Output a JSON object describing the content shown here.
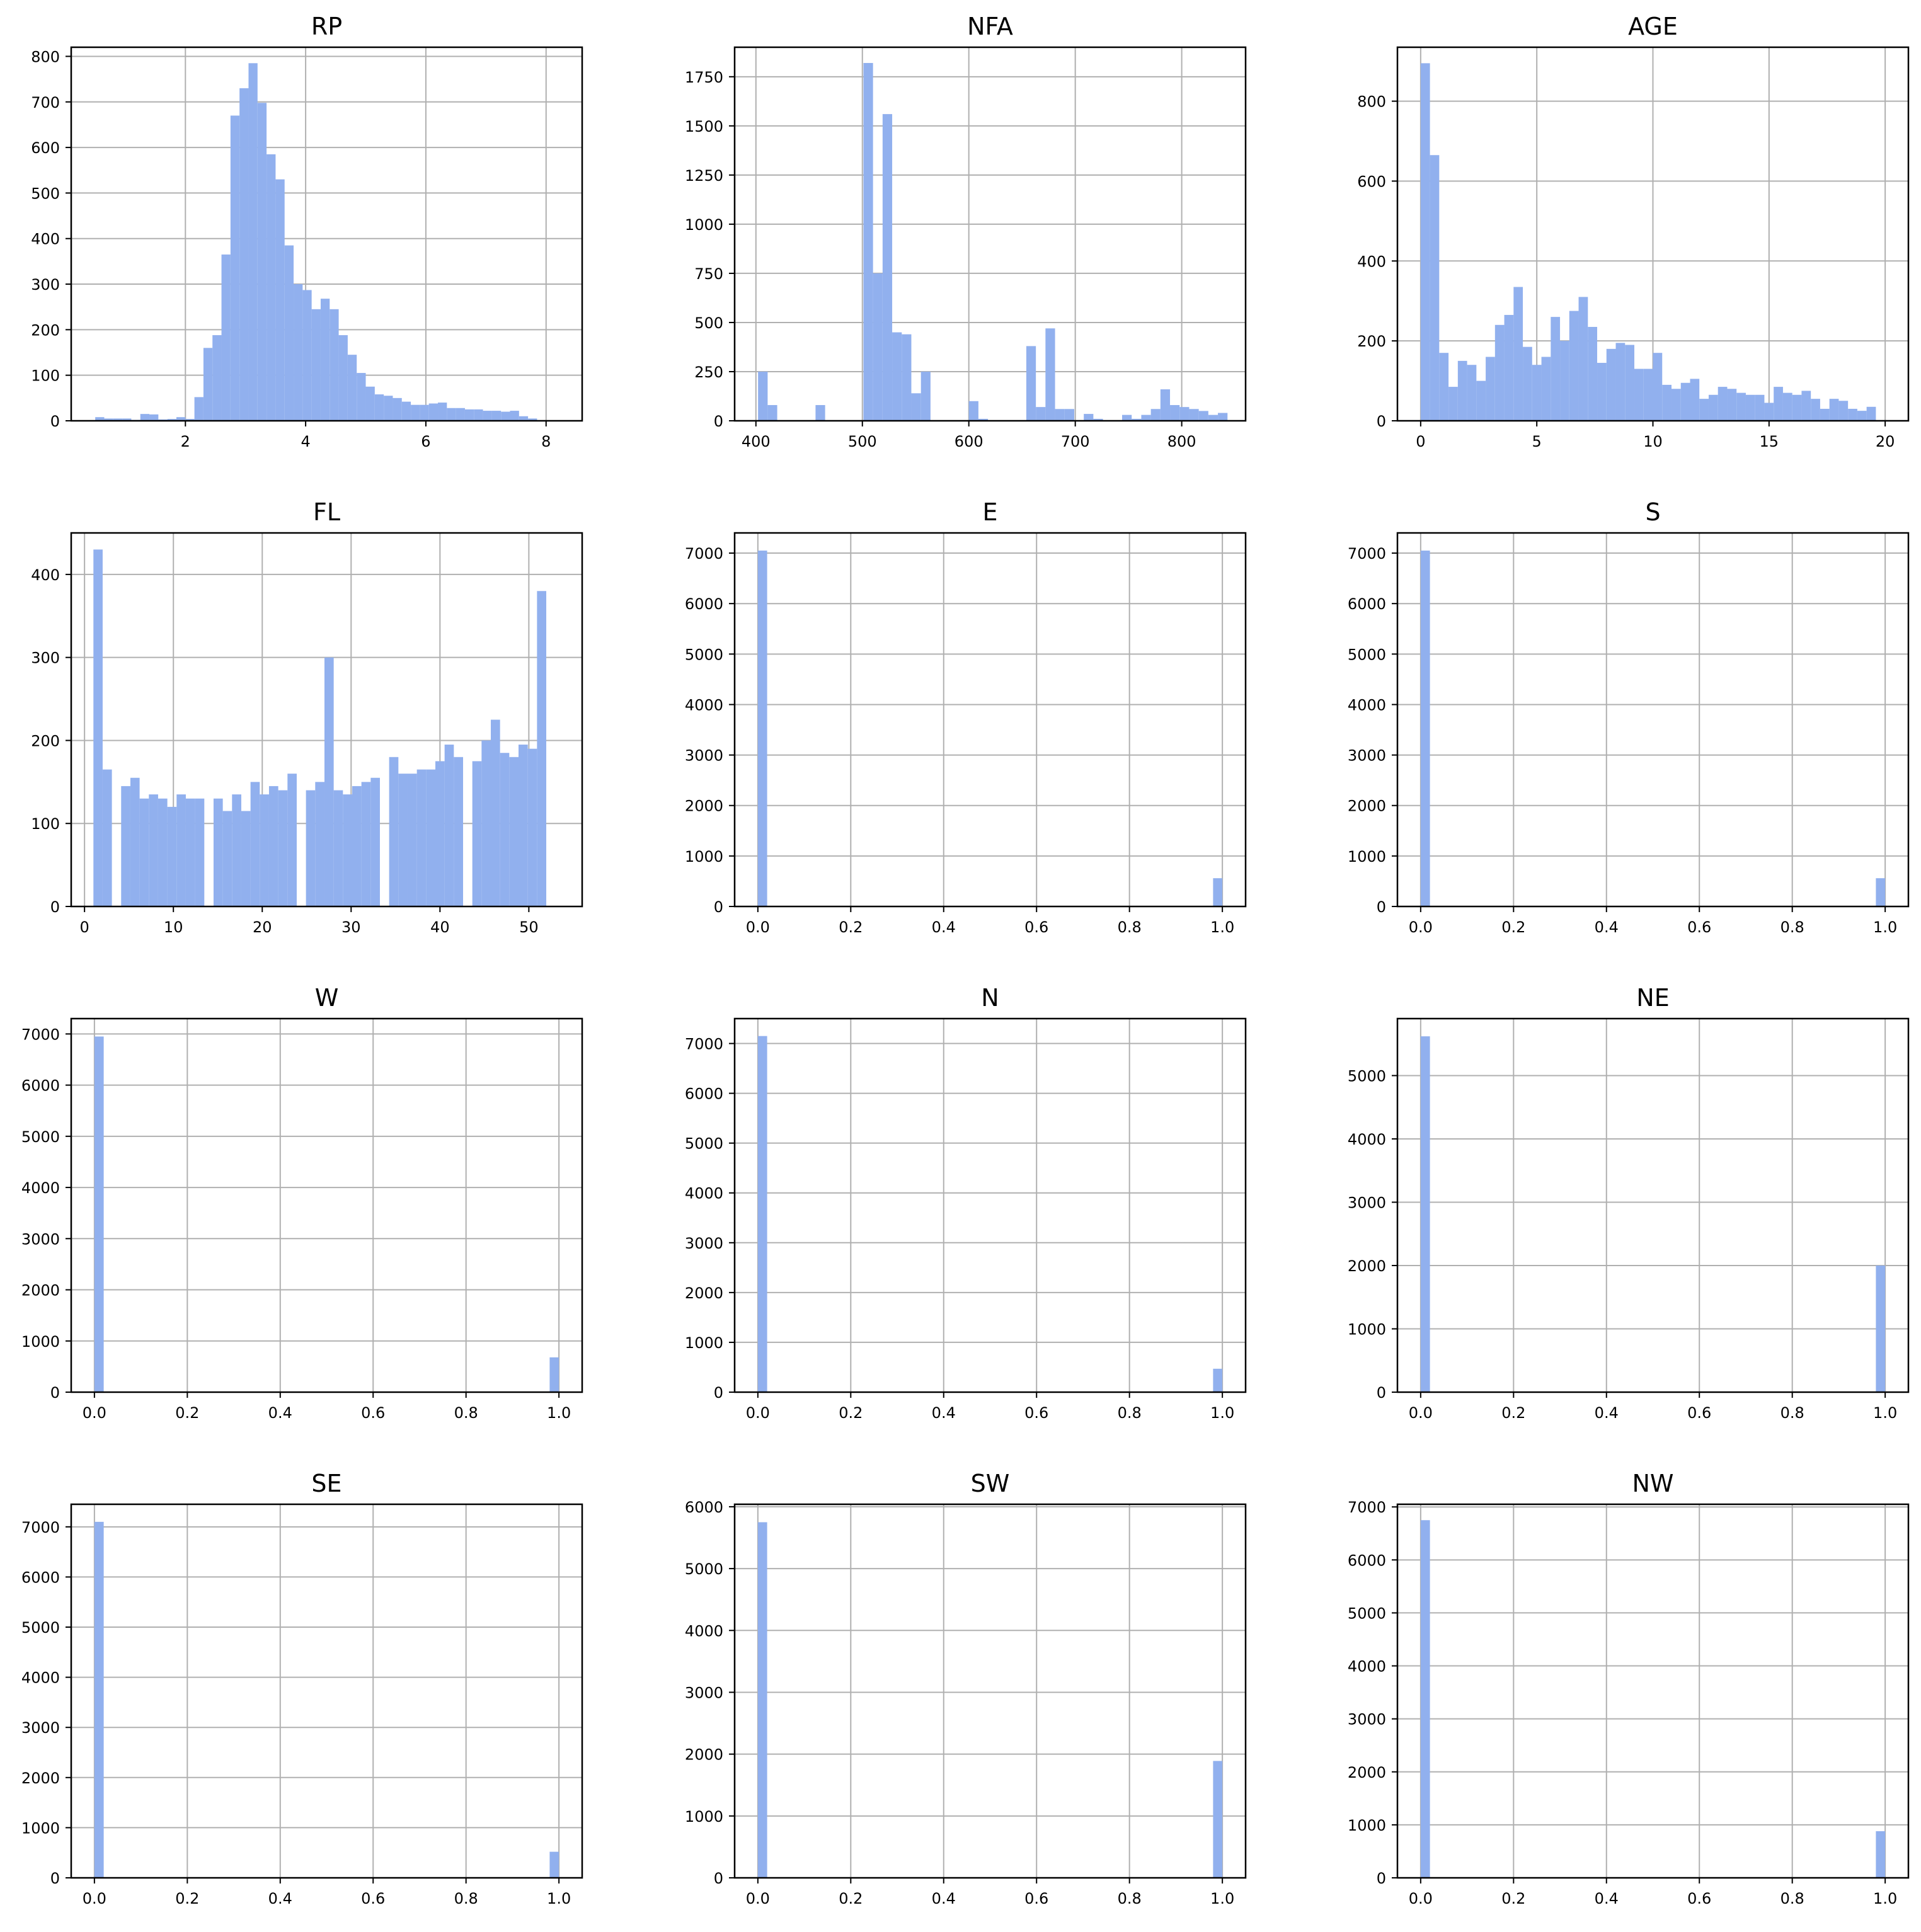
{
  "figure": {
    "type": "histogram-grid",
    "bar_color": "#91b0ee",
    "grid": true,
    "rows": 4,
    "cols": 3
  },
  "chart_data": [
    {
      "type": "bar",
      "title": "RP",
      "xlim": [
        0.1,
        8.6
      ],
      "ylim": [
        0,
        820
      ],
      "xticks": [
        2,
        4,
        6,
        8
      ],
      "xtick_labels": [
        "2",
        "4",
        "6",
        "8"
      ],
      "yticks": [
        0,
        100,
        200,
        300,
        400,
        500,
        600,
        700,
        800
      ],
      "ytick_labels": [
        "0",
        "100",
        "200",
        "300",
        "400",
        "500",
        "600",
        "700",
        "800"
      ],
      "bins": {
        "start": 0.5,
        "width": 0.15
      },
      "values": [
        8,
        5,
        5,
        5,
        2,
        15,
        14,
        3,
        4,
        8,
        4,
        52,
        160,
        188,
        365,
        670,
        730,
        785,
        698,
        585,
        530,
        385,
        300,
        287,
        245,
        268,
        245,
        188,
        145,
        105,
        75,
        58,
        55,
        50,
        42,
        35,
        35,
        38,
        40,
        28,
        28,
        25,
        25,
        22,
        22,
        20,
        22,
        10,
        5
      ]
    },
    {
      "type": "bar",
      "title": "NFA",
      "xlim": [
        380,
        860
      ],
      "ylim": [
        0,
        1900
      ],
      "xticks": [
        400,
        500,
        600,
        700,
        800
      ],
      "xtick_labels": [
        "400",
        "500",
        "600",
        "700",
        "800"
      ],
      "yticks": [
        0,
        250,
        500,
        750,
        1000,
        1250,
        1500,
        1750
      ],
      "ytick_labels": [
        "0",
        "250",
        "500",
        "750",
        "1000",
        "1250",
        "1500",
        "1750"
      ],
      "bins": {
        "start": 402,
        "width": 9
      },
      "values": [
        250,
        80,
        0,
        0,
        0,
        0,
        80,
        0,
        0,
        0,
        0,
        1820,
        750,
        1560,
        450,
        440,
        140,
        250,
        0,
        0,
        0,
        0,
        100,
        10,
        0,
        0,
        0,
        0,
        380,
        70,
        470,
        60,
        60,
        0,
        35,
        10,
        0,
        0,
        30,
        10,
        30,
        60,
        160,
        80,
        70,
        60,
        50,
        30,
        40,
        0
      ]
    },
    {
      "type": "bar",
      "title": "AGE",
      "xlim": [
        -1,
        21
      ],
      "ylim": [
        0,
        935
      ],
      "xticks": [
        0,
        5,
        10,
        15,
        20
      ],
      "xtick_labels": [
        "0",
        "5",
        "10",
        "15",
        "20"
      ],
      "yticks": [
        0,
        200,
        400,
        600,
        800
      ],
      "ytick_labels": [
        "0",
        "200",
        "400",
        "600",
        "800"
      ],
      "bins": {
        "start": 0,
        "width": 0.4
      },
      "values": [
        895,
        665,
        170,
        85,
        150,
        140,
        100,
        160,
        240,
        265,
        335,
        185,
        140,
        160,
        260,
        200,
        275,
        310,
        235,
        145,
        180,
        195,
        190,
        130,
        130,
        170,
        90,
        80,
        95,
        105,
        55,
        65,
        85,
        80,
        70,
        65,
        65,
        45,
        85,
        70,
        65,
        75,
        55,
        30,
        55,
        50,
        30,
        25,
        35
      ]
    },
    {
      "type": "bar",
      "title": "FL",
      "xlim": [
        -1.5,
        56
      ],
      "ylim": [
        0,
        450
      ],
      "xticks": [
        0,
        10,
        20,
        30,
        40,
        50
      ],
      "xtick_labels": [
        "0",
        "10",
        "20",
        "30",
        "40",
        "50"
      ],
      "bins": {
        "start": 1,
        "width": 1.04
      },
      "yticks": [
        0,
        100,
        200,
        300,
        400
      ],
      "ytick_labels": [
        "0",
        "100",
        "200",
        "300",
        "400"
      ],
      "values": [
        430,
        165,
        0,
        145,
        155,
        130,
        135,
        130,
        120,
        135,
        130,
        130,
        0,
        130,
        115,
        135,
        115,
        150,
        135,
        145,
        140,
        160,
        0,
        140,
        150,
        300,
        140,
        135,
        145,
        150,
        155,
        0,
        180,
        160,
        160,
        165,
        165,
        175,
        195,
        180,
        0,
        175,
        200,
        225,
        185,
        180,
        195,
        190,
        380,
        0
      ]
    },
    {
      "type": "bar",
      "title": "E",
      "xlim": [
        -0.05,
        1.05
      ],
      "ylim": [
        0,
        7400
      ],
      "xticks": [
        0,
        0.2,
        0.4,
        0.6,
        0.8,
        1.0
      ],
      "xtick_labels": [
        "0.0",
        "0.2",
        "0.4",
        "0.6",
        "0.8",
        "1.0"
      ],
      "yticks": [
        0,
        1000,
        2000,
        3000,
        4000,
        5000,
        6000,
        7000
      ],
      "ytick_labels": [
        "0",
        "1000",
        "2000",
        "3000",
        "4000",
        "5000",
        "6000",
        "7000"
      ],
      "bins": {
        "start": 0,
        "width": 0.02
      },
      "values": [
        7050,
        0,
        0,
        0,
        0,
        0,
        0,
        0,
        0,
        0,
        0,
        0,
        0,
        0,
        0,
        0,
        0,
        0,
        0,
        0,
        0,
        0,
        0,
        0,
        0,
        0,
        0,
        0,
        0,
        0,
        0,
        0,
        0,
        0,
        0,
        0,
        0,
        0,
        0,
        0,
        0,
        0,
        0,
        0,
        0,
        0,
        0,
        0,
        0,
        560
      ]
    },
    {
      "type": "bar",
      "title": "S",
      "xlim": [
        -0.05,
        1.05
      ],
      "ylim": [
        0,
        7400
      ],
      "xticks": [
        0,
        0.2,
        0.4,
        0.6,
        0.8,
        1.0
      ],
      "xtick_labels": [
        "0.0",
        "0.2",
        "0.4",
        "0.6",
        "0.8",
        "1.0"
      ],
      "yticks": [
        0,
        1000,
        2000,
        3000,
        4000,
        5000,
        6000,
        7000
      ],
      "ytick_labels": [
        "0",
        "1000",
        "2000",
        "3000",
        "4000",
        "5000",
        "6000",
        "7000"
      ],
      "bins": {
        "start": 0,
        "width": 0.02
      },
      "values": [
        7050,
        0,
        0,
        0,
        0,
        0,
        0,
        0,
        0,
        0,
        0,
        0,
        0,
        0,
        0,
        0,
        0,
        0,
        0,
        0,
        0,
        0,
        0,
        0,
        0,
        0,
        0,
        0,
        0,
        0,
        0,
        0,
        0,
        0,
        0,
        0,
        0,
        0,
        0,
        0,
        0,
        0,
        0,
        0,
        0,
        0,
        0,
        0,
        0,
        560
      ]
    },
    {
      "type": "bar",
      "title": "W",
      "xlim": [
        -0.05,
        1.05
      ],
      "ylim": [
        0,
        7300
      ],
      "xticks": [
        0,
        0.2,
        0.4,
        0.6,
        0.8,
        1.0
      ],
      "xtick_labels": [
        "0.0",
        "0.2",
        "0.4",
        "0.6",
        "0.8",
        "1.0"
      ],
      "yticks": [
        0,
        1000,
        2000,
        3000,
        4000,
        5000,
        6000,
        7000
      ],
      "ytick_labels": [
        "0",
        "1000",
        "2000",
        "3000",
        "4000",
        "5000",
        "6000",
        "7000"
      ],
      "bins": {
        "start": 0,
        "width": 0.02
      },
      "values": [
        6950,
        0,
        0,
        0,
        0,
        0,
        0,
        0,
        0,
        0,
        0,
        0,
        0,
        0,
        0,
        0,
        0,
        0,
        0,
        0,
        0,
        0,
        0,
        0,
        0,
        0,
        0,
        0,
        0,
        0,
        0,
        0,
        0,
        0,
        0,
        0,
        0,
        0,
        0,
        0,
        0,
        0,
        0,
        0,
        0,
        0,
        0,
        0,
        0,
        680
      ]
    },
    {
      "type": "bar",
      "title": "N",
      "xlim": [
        -0.05,
        1.05
      ],
      "ylim": [
        0,
        7500
      ],
      "xticks": [
        0,
        0.2,
        0.4,
        0.6,
        0.8,
        1.0
      ],
      "xtick_labels": [
        "0.0",
        "0.2",
        "0.4",
        "0.6",
        "0.8",
        "1.0"
      ],
      "yticks": [
        0,
        1000,
        2000,
        3000,
        4000,
        5000,
        6000,
        7000
      ],
      "ytick_labels": [
        "0",
        "1000",
        "2000",
        "3000",
        "4000",
        "5000",
        "6000",
        "7000"
      ],
      "bins": {
        "start": 0,
        "width": 0.02
      },
      "values": [
        7150,
        0,
        0,
        0,
        0,
        0,
        0,
        0,
        0,
        0,
        0,
        0,
        0,
        0,
        0,
        0,
        0,
        0,
        0,
        0,
        0,
        0,
        0,
        0,
        0,
        0,
        0,
        0,
        0,
        0,
        0,
        0,
        0,
        0,
        0,
        0,
        0,
        0,
        0,
        0,
        0,
        0,
        0,
        0,
        0,
        0,
        0,
        0,
        0,
        470
      ]
    },
    {
      "type": "bar",
      "title": "NE",
      "xlim": [
        -0.05,
        1.05
      ],
      "ylim": [
        0,
        5900
      ],
      "xticks": [
        0,
        0.2,
        0.4,
        0.6,
        0.8,
        1.0
      ],
      "xtick_labels": [
        "0.0",
        "0.2",
        "0.4",
        "0.6",
        "0.8",
        "1.0"
      ],
      "yticks": [
        0,
        1000,
        2000,
        3000,
        4000,
        5000
      ],
      "ytick_labels": [
        "0",
        "1000",
        "2000",
        "3000",
        "4000",
        "5000"
      ],
      "bins": {
        "start": 0,
        "width": 0.02
      },
      "values": [
        5620,
        0,
        0,
        0,
        0,
        0,
        0,
        0,
        0,
        0,
        0,
        0,
        0,
        0,
        0,
        0,
        0,
        0,
        0,
        0,
        0,
        0,
        0,
        0,
        0,
        0,
        0,
        0,
        0,
        0,
        0,
        0,
        0,
        0,
        0,
        0,
        0,
        0,
        0,
        0,
        0,
        0,
        0,
        0,
        0,
        0,
        0,
        0,
        0,
        2000
      ]
    },
    {
      "type": "bar",
      "title": "SE",
      "xlim": [
        -0.05,
        1.05
      ],
      "ylim": [
        0,
        7450
      ],
      "xticks": [
        0,
        0.2,
        0.4,
        0.6,
        0.8,
        1.0
      ],
      "xtick_labels": [
        "0.0",
        "0.2",
        "0.4",
        "0.6",
        "0.8",
        "1.0"
      ],
      "yticks": [
        0,
        1000,
        2000,
        3000,
        4000,
        5000,
        6000,
        7000
      ],
      "ytick_labels": [
        "0",
        "1000",
        "2000",
        "3000",
        "4000",
        "5000",
        "6000",
        "7000"
      ],
      "bins": {
        "start": 0,
        "width": 0.02
      },
      "values": [
        7100,
        0,
        0,
        0,
        0,
        0,
        0,
        0,
        0,
        0,
        0,
        0,
        0,
        0,
        0,
        0,
        0,
        0,
        0,
        0,
        0,
        0,
        0,
        0,
        0,
        0,
        0,
        0,
        0,
        0,
        0,
        0,
        0,
        0,
        0,
        0,
        0,
        0,
        0,
        0,
        0,
        0,
        0,
        0,
        0,
        0,
        0,
        0,
        0,
        520
      ]
    },
    {
      "type": "bar",
      "title": "SW",
      "xlim": [
        -0.05,
        1.05
      ],
      "ylim": [
        0,
        6040
      ],
      "xticks": [
        0,
        0.2,
        0.4,
        0.6,
        0.8,
        1.0
      ],
      "xtick_labels": [
        "0.0",
        "0.2",
        "0.4",
        "0.6",
        "0.8",
        "1.0"
      ],
      "yticks": [
        0,
        1000,
        2000,
        3000,
        4000,
        5000,
        6000
      ],
      "ytick_labels": [
        "0",
        "1000",
        "2000",
        "3000",
        "4000",
        "5000",
        "6000"
      ],
      "bins": {
        "start": 0,
        "width": 0.02
      },
      "values": [
        5750,
        0,
        0,
        0,
        0,
        0,
        0,
        0,
        0,
        0,
        0,
        0,
        0,
        0,
        0,
        0,
        0,
        0,
        0,
        0,
        0,
        0,
        0,
        0,
        0,
        0,
        0,
        0,
        0,
        0,
        0,
        0,
        0,
        0,
        0,
        0,
        0,
        0,
        0,
        0,
        0,
        0,
        0,
        0,
        0,
        0,
        0,
        0,
        0,
        1890
      ]
    },
    {
      "type": "bar",
      "title": "NW",
      "xlim": [
        -0.05,
        1.05
      ],
      "ylim": [
        0,
        7050
      ],
      "xticks": [
        0,
        0.2,
        0.4,
        0.6,
        0.8,
        1.0
      ],
      "xtick_labels": [
        "0.0",
        "0.2",
        "0.4",
        "0.6",
        "0.8",
        "1.0"
      ],
      "yticks": [
        0,
        1000,
        2000,
        3000,
        4000,
        5000,
        6000,
        7000
      ],
      "ytick_labels": [
        "0",
        "1000",
        "2000",
        "3000",
        "4000",
        "5000",
        "6000",
        "7000"
      ],
      "bins": {
        "start": 0,
        "width": 0.02
      },
      "values": [
        6750,
        0,
        0,
        0,
        0,
        0,
        0,
        0,
        0,
        0,
        0,
        0,
        0,
        0,
        0,
        0,
        0,
        0,
        0,
        0,
        0,
        0,
        0,
        0,
        0,
        0,
        0,
        0,
        0,
        0,
        0,
        0,
        0,
        0,
        0,
        0,
        0,
        0,
        0,
        0,
        0,
        0,
        0,
        0,
        0,
        0,
        0,
        0,
        0,
        880
      ]
    }
  ]
}
